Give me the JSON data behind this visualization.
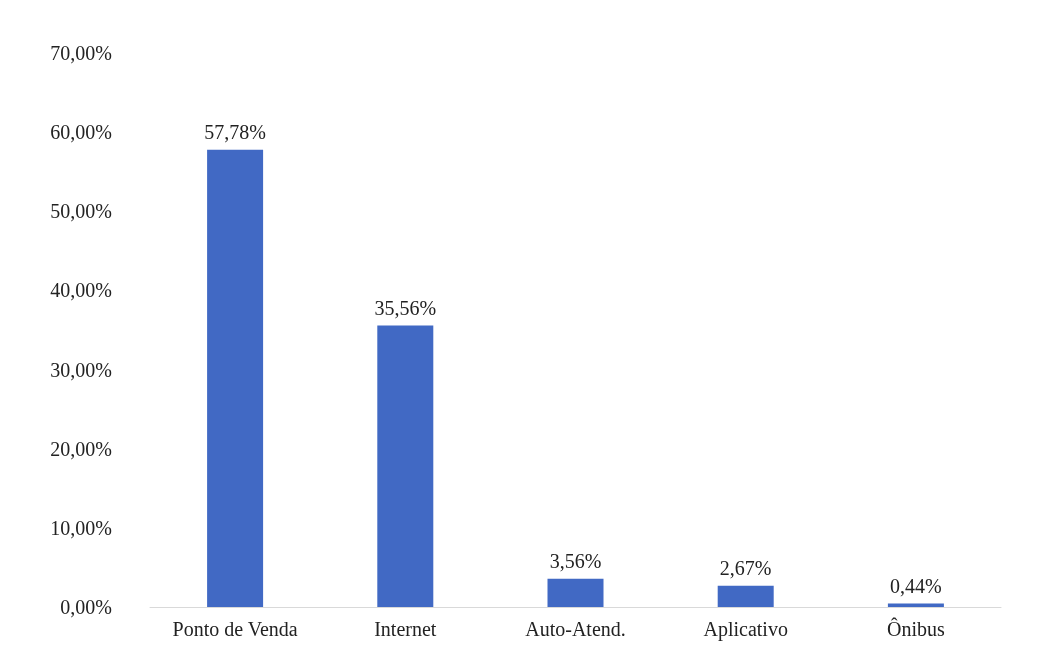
{
  "chart_data": {
    "type": "bar",
    "categories": [
      "Ponto de Venda",
      "Internet",
      "Auto-Atend.",
      "Aplicativo",
      "Ônibus"
    ],
    "values": [
      57.78,
      35.56,
      3.56,
      2.67,
      0.44
    ],
    "value_labels": [
      "57,78%",
      "35,56%",
      "3,56%",
      "2,67%",
      "0,44%"
    ],
    "color": "#4169c4",
    "ylim": [
      0,
      70
    ],
    "yticks": [
      {
        "value": 0,
        "label": "0,00%"
      },
      {
        "value": 10,
        "label": "10,00%"
      },
      {
        "value": 20,
        "label": "20,00%"
      },
      {
        "value": 30,
        "label": "30,00%"
      },
      {
        "value": 40,
        "label": "40,00%"
      },
      {
        "value": 50,
        "label": "50,00%"
      },
      {
        "value": 60,
        "label": "60,00%"
      },
      {
        "value": 70,
        "label": "70,00%"
      }
    ],
    "grid": false
  }
}
